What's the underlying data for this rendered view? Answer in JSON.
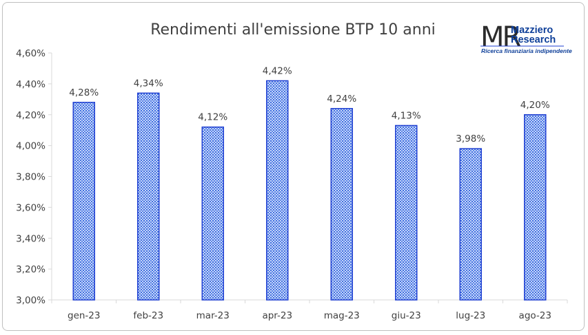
{
  "chart_data": {
    "type": "bar",
    "title": "Rendimenti all'emissione BTP 10 anni",
    "categories": [
      "gen-23",
      "feb-23",
      "mar-23",
      "apr-23",
      "mag-23",
      "giu-23",
      "lug-23",
      "ago-23"
    ],
    "values": [
      4.28,
      4.34,
      4.12,
      4.42,
      4.24,
      4.13,
      3.98,
      4.2
    ],
    "value_labels": [
      "4,28%",
      "4,34%",
      "4,12%",
      "4,42%",
      "4,24%",
      "4,13%",
      "3,98%",
      "4,20%"
    ],
    "ylim": [
      3.0,
      4.6
    ],
    "yticks": [
      3.0,
      3.2,
      3.4,
      3.6,
      3.8,
      4.0,
      4.2,
      4.4,
      4.6
    ],
    "ytick_labels": [
      "3,00%",
      "3,20%",
      "3,40%",
      "3,60%",
      "3,80%",
      "4,00%",
      "4,20%",
      "4,40%",
      "4,60%"
    ],
    "xlabel": "",
    "ylabel": "",
    "grid": false,
    "colors": {
      "bar_fill": "#c8d7f7",
      "bar_pattern": "#3f6ee0",
      "bar_edge": "#1f3fd1",
      "axis": "#d9d9d9",
      "text": "#404040"
    }
  },
  "logo": {
    "mark": "MR",
    "name_line1": "Mazziero",
    "name_line2": "Research",
    "tagline": "Ricerca finanziaria indipendente",
    "colors": {
      "mark": "#2b2b2b",
      "name": "#0e3f99",
      "underline": "#1f3fd1"
    }
  }
}
